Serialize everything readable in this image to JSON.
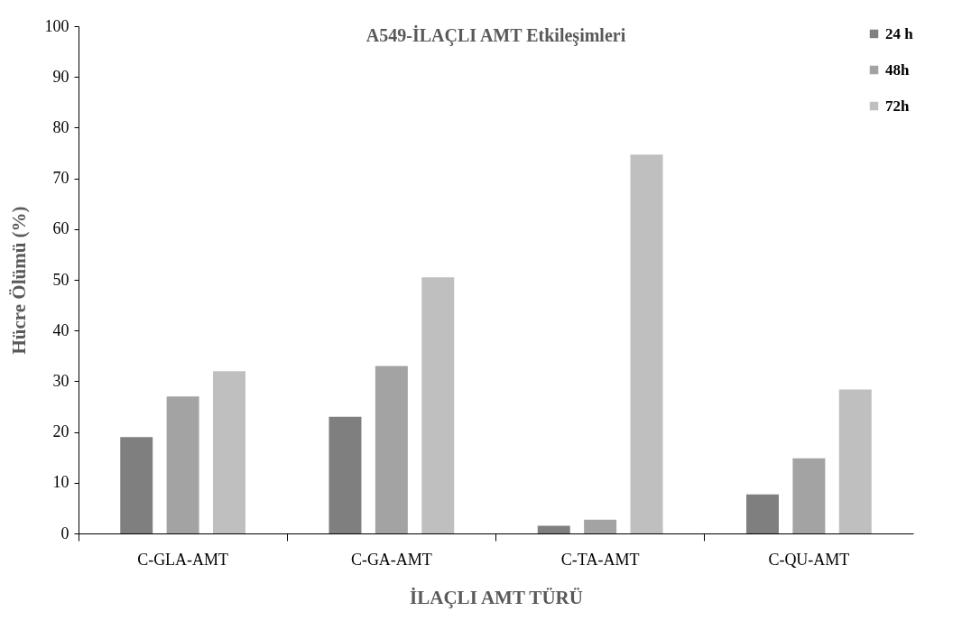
{
  "chart_data": {
    "type": "bar",
    "title": "A549-İLAÇLI AMT Etkileşimleri",
    "xlabel": "İLAÇLI AMT TÜRÜ",
    "ylabel": "Hücre Ölümü (%)",
    "categories": [
      "C-GLA-AMT",
      "C-GA-AMT",
      "C-TA-AMT",
      "C-QU-AMT"
    ],
    "series": [
      {
        "name": "24 h",
        "color": "#7f7f7f",
        "values": [
          19,
          23,
          1.5,
          7.7
        ]
      },
      {
        "name": "48h",
        "color": "#a3a3a3",
        "values": [
          27,
          33,
          2.7,
          14.8
        ]
      },
      {
        "name": "72h",
        "color": "#bfbfbf",
        "values": [
          32,
          50.5,
          74.7,
          28.4
        ]
      }
    ],
    "ylim": [
      0,
      100
    ],
    "yticks": [
      0,
      10,
      20,
      30,
      40,
      50,
      60,
      70,
      80,
      90,
      100
    ],
    "grid": false,
    "legend": "top right"
  }
}
